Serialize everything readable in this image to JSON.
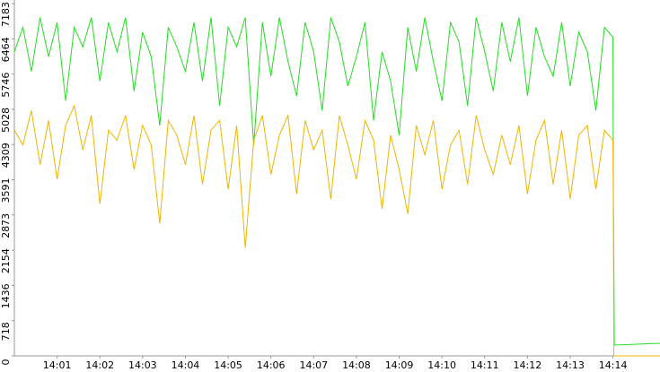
{
  "chart_data": {
    "type": "line",
    "x": [
      0,
      0.2,
      0.4,
      0.6,
      0.8,
      1,
      1.2,
      1.4,
      1.6,
      1.8,
      2,
      2.2,
      2.4,
      2.6,
      2.8,
      3,
      3.2,
      3.4,
      3.6,
      3.8,
      4,
      4.2,
      4.4,
      4.6,
      4.8,
      5,
      5.2,
      5.4,
      5.6,
      5.8,
      6,
      6.2,
      6.4,
      6.6,
      6.8,
      7,
      7.2,
      7.4,
      7.6,
      7.8,
      8,
      8.2,
      8.4,
      8.6,
      8.8,
      9,
      9.2,
      9.4,
      9.6,
      9.8,
      10,
      10.2,
      10.4,
      10.6,
      10.8,
      11,
      11.2,
      11.4,
      11.6,
      11.8,
      12,
      12.2,
      12.4,
      12.6,
      12.8,
      13,
      13.2,
      13.4,
      13.6,
      13.8,
      14,
      14.01,
      14.02,
      14.03,
      15.1
    ],
    "series": [
      {
        "color": "#22dd22",
        "values": [
          6200,
          6700,
          5800,
          6900,
          6100,
          6800,
          5200,
          6700,
          6300,
          6900,
          5600,
          6800,
          6200,
          6900,
          5400,
          6600,
          6100,
          4700,
          6700,
          6300,
          5800,
          6800,
          5600,
          6900,
          5100,
          6700,
          6300,
          6900,
          4300,
          6800,
          5700,
          6900,
          6000,
          5300,
          6800,
          6200,
          5000,
          6900,
          6400,
          5500,
          6100,
          6800,
          4800,
          6200,
          5600,
          4500,
          6700,
          5800,
          6900,
          6000,
          5200,
          6800,
          6400,
          5100,
          6900,
          6200,
          5400,
          6800,
          6000,
          6900,
          5300,
          6700,
          6100,
          5700,
          6800,
          5500,
          6600,
          6200,
          5000,
          6700,
          6500,
          3100,
          1900,
          220,
          256
        ]
      },
      {
        "color": "#f0b400",
        "values": [
          4600,
          4300,
          5000,
          3900,
          4800,
          3600,
          4700,
          5100,
          4200,
          4900,
          3100,
          4600,
          4400,
          4900,
          3800,
          4700,
          4300,
          2700,
          4800,
          4500,
          3900,
          4900,
          3500,
          4600,
          4800,
          3400,
          4700,
          2200,
          4400,
          4900,
          3700,
          4500,
          4900,
          3300,
          4800,
          4200,
          4600,
          3200,
          4900,
          4300,
          3600,
          4800,
          4400,
          3000,
          4500,
          3800,
          2900,
          4700,
          4100,
          4800,
          3400,
          4300,
          4600,
          3500,
          4900,
          4200,
          3700,
          4500,
          3900,
          4700,
          3300,
          4400,
          4800,
          3500,
          4600,
          3200,
          4500,
          4700,
          3400,
          4600,
          4400,
          2900,
          0,
          0,
          0
        ]
      }
    ],
    "xlim": [
      0,
      15.1
    ],
    "xticks": [
      {
        "value": 1,
        "label": "14:01"
      },
      {
        "value": 2,
        "label": "14:02"
      },
      {
        "value": 3,
        "label": "14:03"
      },
      {
        "value": 4,
        "label": "14:04"
      },
      {
        "value": 5,
        "label": "14:05"
      },
      {
        "value": 6,
        "label": "14:06"
      },
      {
        "value": 7,
        "label": "14:07"
      },
      {
        "value": 8,
        "label": "14:08"
      },
      {
        "value": 9,
        "label": "14:09"
      },
      {
        "value": 10,
        "label": "14:10"
      },
      {
        "value": 11,
        "label": "14:11"
      },
      {
        "value": 12,
        "label": "14:12"
      },
      {
        "value": 13,
        "label": "14:13"
      },
      {
        "value": 14,
        "label": "14:14"
      }
    ],
    "ylim": [
      0,
      7183
    ],
    "yticks": [
      0,
      718,
      1436,
      2154,
      2873,
      3591,
      4309,
      5028,
      5746,
      6464,
      7183
    ]
  }
}
